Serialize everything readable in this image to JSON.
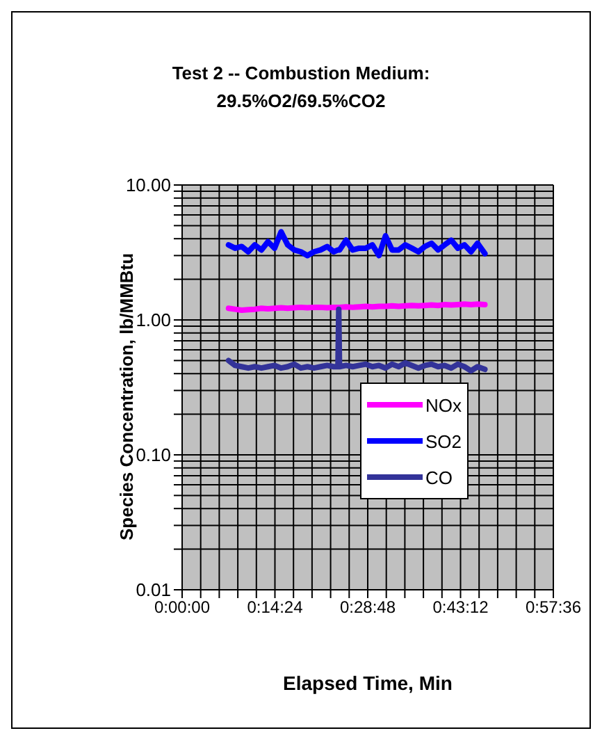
{
  "chart_data": {
    "type": "line",
    "title": "Test 2 -- Combustion Medium: 29.5%O2/69.5%CO2",
    "xlabel": "Elapsed Time, Min",
    "ylabel": "Species Concentration, lb/MMBtu",
    "log": "y",
    "grid": true,
    "legend": "right",
    "marker": "none",
    "line_style": "solid",
    "x": [
      0.12,
      0.137,
      0.154,
      0.171,
      0.188,
      0.205,
      0.222,
      0.239,
      0.256,
      0.273,
      0.29,
      0.307,
      0.324,
      0.341,
      0.358,
      0.375,
      0.392,
      0.403,
      0.405,
      0.407,
      0.424,
      0.441,
      0.458,
      0.475,
      0.492,
      0.509,
      0.526,
      0.543,
      0.56,
      0.577,
      0.594,
      0.611,
      0.628,
      0.645,
      0.662,
      0.679,
      0.696,
      0.713,
      0.73,
      0.747,
      0.764,
      0.783
    ],
    "xlim": [
      0,
      0.96
    ],
    "xticks": [
      {
        "value": 0,
        "label": "0:00:00"
      },
      {
        "value": 0.048,
        "label": null
      },
      {
        "value": 0.096,
        "label": null
      },
      {
        "value": 0.144,
        "label": null
      },
      {
        "value": 0.192,
        "label": null
      },
      {
        "value": 0.24,
        "label": "0:14:24"
      },
      {
        "value": 0.288,
        "label": null
      },
      {
        "value": 0.336,
        "label": null
      },
      {
        "value": 0.384,
        "label": null
      },
      {
        "value": 0.432,
        "label": null
      },
      {
        "value": 0.48,
        "label": "0:28:48"
      },
      {
        "value": 0.528,
        "label": null
      },
      {
        "value": 0.576,
        "label": null
      },
      {
        "value": 0.624,
        "label": null
      },
      {
        "value": 0.672,
        "label": null
      },
      {
        "value": 0.72,
        "label": "0:43:12"
      },
      {
        "value": 0.768,
        "label": null
      },
      {
        "value": 0.816,
        "label": null
      },
      {
        "value": 0.864,
        "label": null
      },
      {
        "value": 0.912,
        "label": null
      },
      {
        "value": 0.96,
        "label": "0:57:36"
      }
    ],
    "ylim": [
      0.01,
      10
    ],
    "yticks": [
      {
        "value": 0.01,
        "label": "0.01"
      },
      {
        "value": 0.02,
        "label": null
      },
      {
        "value": 0.03,
        "label": null
      },
      {
        "value": 0.04,
        "label": null
      },
      {
        "value": 0.05,
        "label": null
      },
      {
        "value": 0.06,
        "label": null
      },
      {
        "value": 0.07,
        "label": null
      },
      {
        "value": 0.08,
        "label": null
      },
      {
        "value": 0.09,
        "label": null
      },
      {
        "value": 0.1,
        "label": "0.10"
      },
      {
        "value": 0.2,
        "label": null
      },
      {
        "value": 0.3,
        "label": null
      },
      {
        "value": 0.4,
        "label": null
      },
      {
        "value": 0.5,
        "label": null
      },
      {
        "value": 0.6,
        "label": null
      },
      {
        "value": 0.7,
        "label": null
      },
      {
        "value": 0.8,
        "label": null
      },
      {
        "value": 0.9,
        "label": null
      },
      {
        "value": 1,
        "label": "1.00"
      },
      {
        "value": 2,
        "label": null
      },
      {
        "value": 3,
        "label": null
      },
      {
        "value": 4,
        "label": null
      },
      {
        "value": 5,
        "label": null
      },
      {
        "value": 6,
        "label": null
      },
      {
        "value": 7,
        "label": null
      },
      {
        "value": 8,
        "label": null
      },
      {
        "value": 9,
        "label": null
      },
      {
        "value": 10,
        "label": "10.00"
      }
    ],
    "series": [
      {
        "name": "NOx",
        "color": "#ff00ff",
        "values": [
          1.22,
          1.2,
          1.18,
          1.19,
          1.2,
          1.22,
          1.21,
          1.22,
          1.23,
          1.22,
          1.23,
          1.24,
          1.23,
          1.24,
          1.24,
          1.23,
          1.24,
          1.24,
          1.24,
          1.24,
          1.25,
          1.24,
          1.25,
          1.26,
          1.25,
          1.26,
          1.26,
          1.27,
          1.26,
          1.27,
          1.28,
          1.27,
          1.28,
          1.29,
          1.28,
          1.3,
          1.29,
          1.3,
          1.31,
          1.3,
          1.31,
          1.3
        ]
      },
      {
        "name": "SO2",
        "color": "#0000ff",
        "values": [
          3.6,
          3.4,
          3.5,
          3.2,
          3.6,
          3.3,
          3.8,
          3.4,
          4.5,
          3.6,
          3.3,
          3.2,
          3.0,
          3.2,
          3.3,
          3.5,
          3.2,
          3.3,
          3.3,
          3.3,
          3.9,
          3.3,
          3.4,
          3.4,
          3.6,
          3.0,
          4.2,
          3.3,
          3.3,
          3.6,
          3.4,
          3.2,
          3.5,
          3.7,
          3.3,
          3.6,
          3.9,
          3.4,
          3.6,
          3.2,
          3.7,
          3.1
        ]
      },
      {
        "name": "CO",
        "color": "#333399",
        "values": [
          0.5,
          0.46,
          0.45,
          0.44,
          0.45,
          0.44,
          0.45,
          0.46,
          0.44,
          0.45,
          0.47,
          0.44,
          0.45,
          0.44,
          0.45,
          0.46,
          0.45,
          0.45,
          1.2,
          0.45,
          0.46,
          0.45,
          0.46,
          0.47,
          0.45,
          0.46,
          0.44,
          0.47,
          0.45,
          0.48,
          0.46,
          0.44,
          0.46,
          0.47,
          0.45,
          0.46,
          0.44,
          0.47,
          0.45,
          0.42,
          0.45,
          0.43
        ]
      }
    ]
  }
}
